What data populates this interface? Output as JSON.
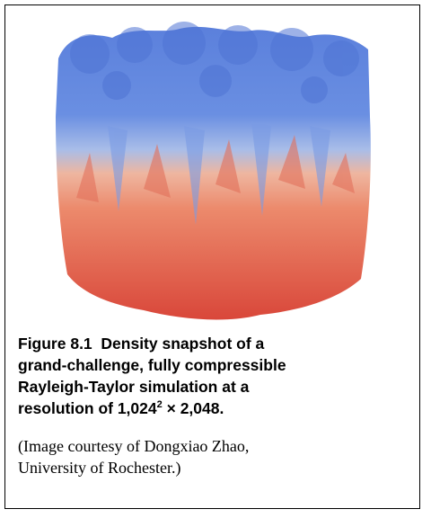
{
  "figure": {
    "label": "Figure 8.1",
    "caption": "Density snapshot of a grand-challenge, fully compressible Rayleigh-Taylor simulation at a resolution of 1,024",
    "caption_superscript": "2",
    "caption_end": " × 2,048.",
    "credit": "(Image courtesy of Dongxiao Zhao, University of Rochester.)"
  }
}
